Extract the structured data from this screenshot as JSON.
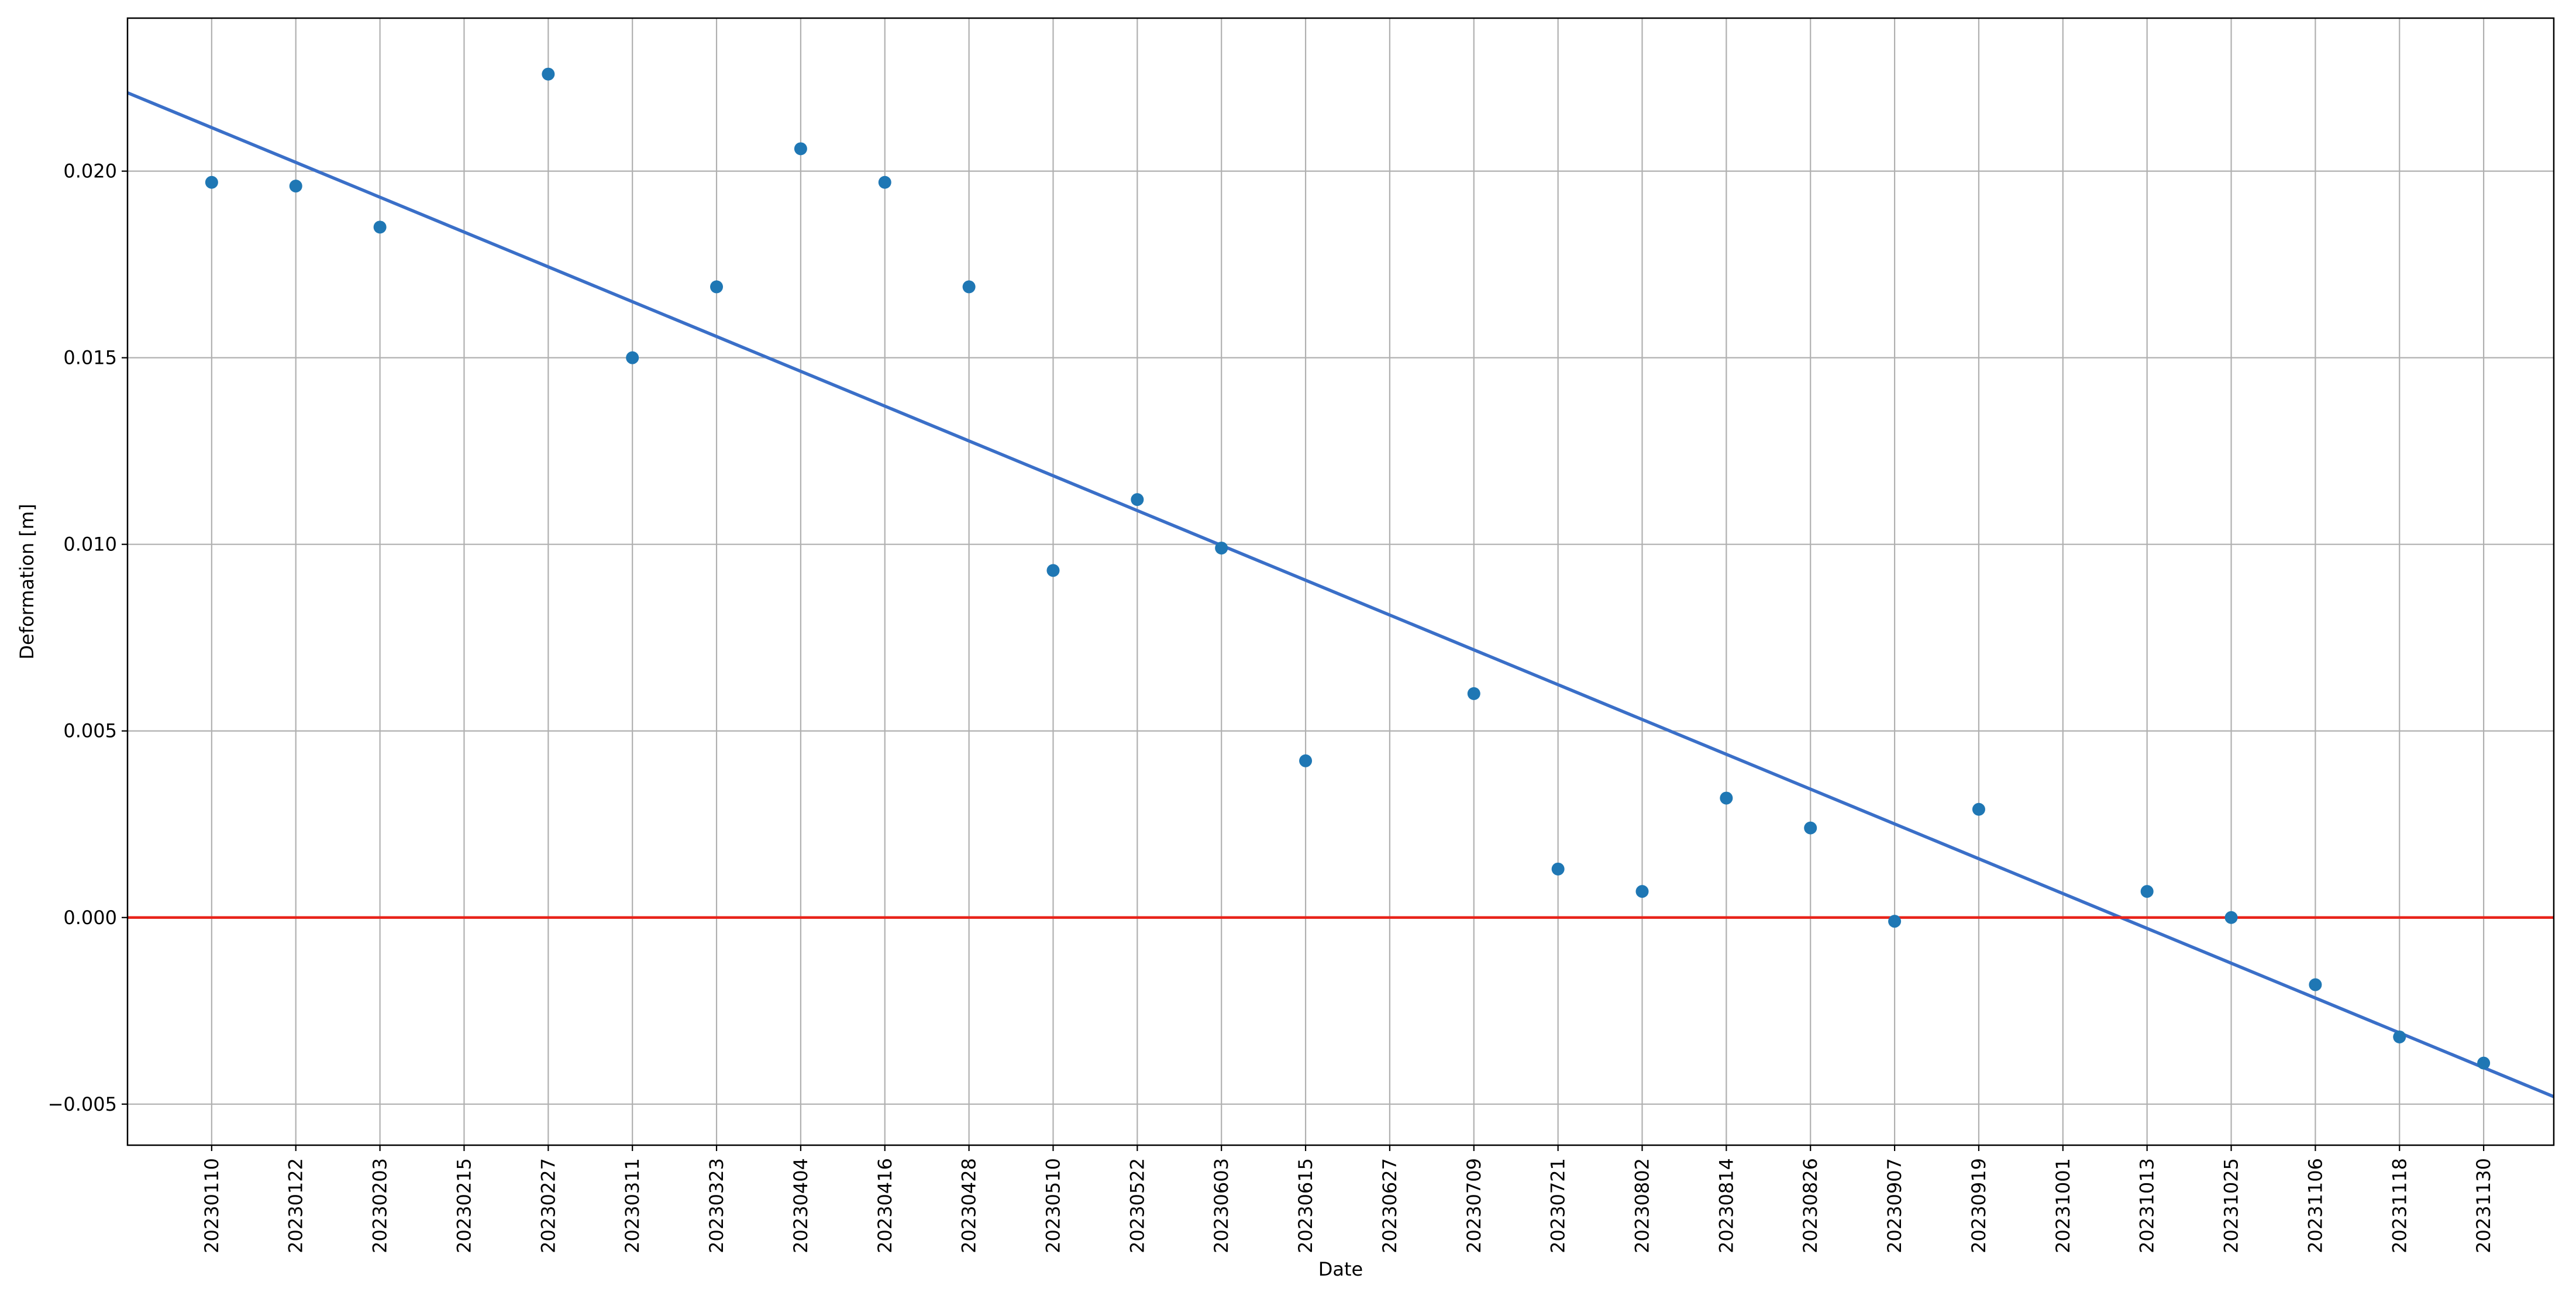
{
  "chart_data": {
    "type": "scatter",
    "title": "",
    "xlabel": "Date",
    "ylabel": "Deformation [m]",
    "x_ticks": [
      "20230110",
      "20230122",
      "20230203",
      "20230215",
      "20230227",
      "20230311",
      "20230323",
      "20230404",
      "20230416",
      "20230428",
      "20230510",
      "20230522",
      "20230603",
      "20230615",
      "20230627",
      "20230709",
      "20230721",
      "20230802",
      "20230814",
      "20230826",
      "20230907",
      "20230919",
      "20231001",
      "20231013",
      "20231025",
      "20231106",
      "20231118",
      "20231130"
    ],
    "y_ticks": [
      {
        "value": -0.005,
        "label": "−0.005"
      },
      {
        "value": 0.0,
        "label": "0.000"
      },
      {
        "value": 0.005,
        "label": "0.005"
      },
      {
        "value": 0.01,
        "label": "0.010"
      },
      {
        "value": 0.015,
        "label": "0.015"
      },
      {
        "value": 0.02,
        "label": "0.020"
      }
    ],
    "xlim": [
      "20221229",
      "20231210"
    ],
    "ylim": [
      -0.0061,
      0.0241
    ],
    "grid": true,
    "series": [
      {
        "type": "scatter",
        "color": "#1f77b4",
        "points": [
          {
            "x": "20230110",
            "y": 0.0197
          },
          {
            "x": "20230122",
            "y": 0.0196
          },
          {
            "x": "20230203",
            "y": 0.0185
          },
          {
            "x": "20230227",
            "y": 0.0226
          },
          {
            "x": "20230311",
            "y": 0.015
          },
          {
            "x": "20230323",
            "y": 0.0169
          },
          {
            "x": "20230404",
            "y": 0.0206
          },
          {
            "x": "20230416",
            "y": 0.0197
          },
          {
            "x": "20230428",
            "y": 0.0169
          },
          {
            "x": "20230510",
            "y": 0.0093
          },
          {
            "x": "20230522",
            "y": 0.0112
          },
          {
            "x": "20230603",
            "y": 0.0099
          },
          {
            "x": "20230615",
            "y": 0.0042
          },
          {
            "x": "20230709",
            "y": 0.006
          },
          {
            "x": "20230721",
            "y": 0.0013
          },
          {
            "x": "20230802",
            "y": 0.0007
          },
          {
            "x": "20230814",
            "y": 0.0032
          },
          {
            "x": "20230826",
            "y": 0.0024
          },
          {
            "x": "20230907",
            "y": -0.0001
          },
          {
            "x": "20230919",
            "y": 0.0029
          },
          {
            "x": "20231013",
            "y": 0.0007
          },
          {
            "x": "20231025",
            "y": 0.0
          },
          {
            "x": "20231106",
            "y": -0.0018
          },
          {
            "x": "20231118",
            "y": -0.0032
          },
          {
            "x": "20231130",
            "y": -0.0039
          }
        ]
      },
      {
        "type": "line",
        "color": "#3a6fc8",
        "points": [
          {
            "x": "20221229",
            "y": 0.0221
          },
          {
            "x": "20231210",
            "y": -0.0048
          }
        ]
      },
      {
        "type": "line",
        "color": "#e8231a",
        "points": [
          {
            "x": "20221229",
            "y": 0.0
          },
          {
            "x": "20231210",
            "y": 0.0
          }
        ]
      }
    ]
  }
}
